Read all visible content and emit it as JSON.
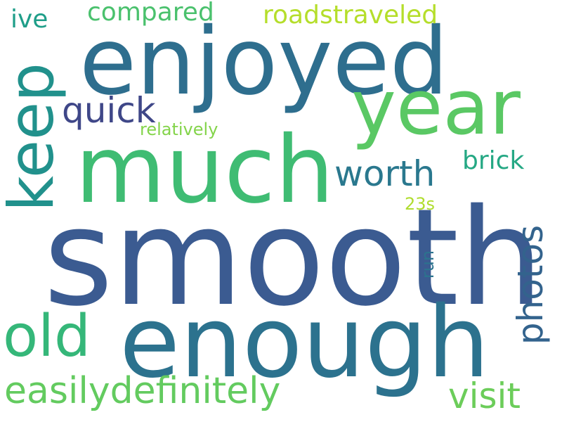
{
  "words": [
    {
      "text": "smooth",
      "color": "#3b5b91"
    },
    {
      "text": "enjoyed",
      "color": "#2e6e8e"
    },
    {
      "text": "much",
      "color": "#3fbc73"
    },
    {
      "text": "enough",
      "color": "#2c728e"
    },
    {
      "text": "year",
      "color": "#5ac864"
    },
    {
      "text": "keep",
      "color": "#21918c"
    },
    {
      "text": "old",
      "color": "#35b779"
    },
    {
      "text": "worth",
      "color": "#2a788e"
    },
    {
      "text": "quick",
      "color": "#3f4788"
    },
    {
      "text": "photos",
      "color": "#33638d"
    },
    {
      "text": "easilydefinitely",
      "color": "#63cb5f"
    },
    {
      "text": "visit",
      "color": "#6ccd5a"
    },
    {
      "text": "compared",
      "color": "#4ac16d"
    },
    {
      "text": "roadstraveled",
      "color": "#b5de2b"
    },
    {
      "text": "brick",
      "color": "#25a884"
    },
    {
      "text": "ive",
      "color": "#1f9e89"
    },
    {
      "text": "relatively",
      "color": "#84d44b"
    },
    {
      "text": "23s",
      "color": "#b0dd2f"
    },
    {
      "text": "run",
      "color": "#2c738e"
    }
  ]
}
